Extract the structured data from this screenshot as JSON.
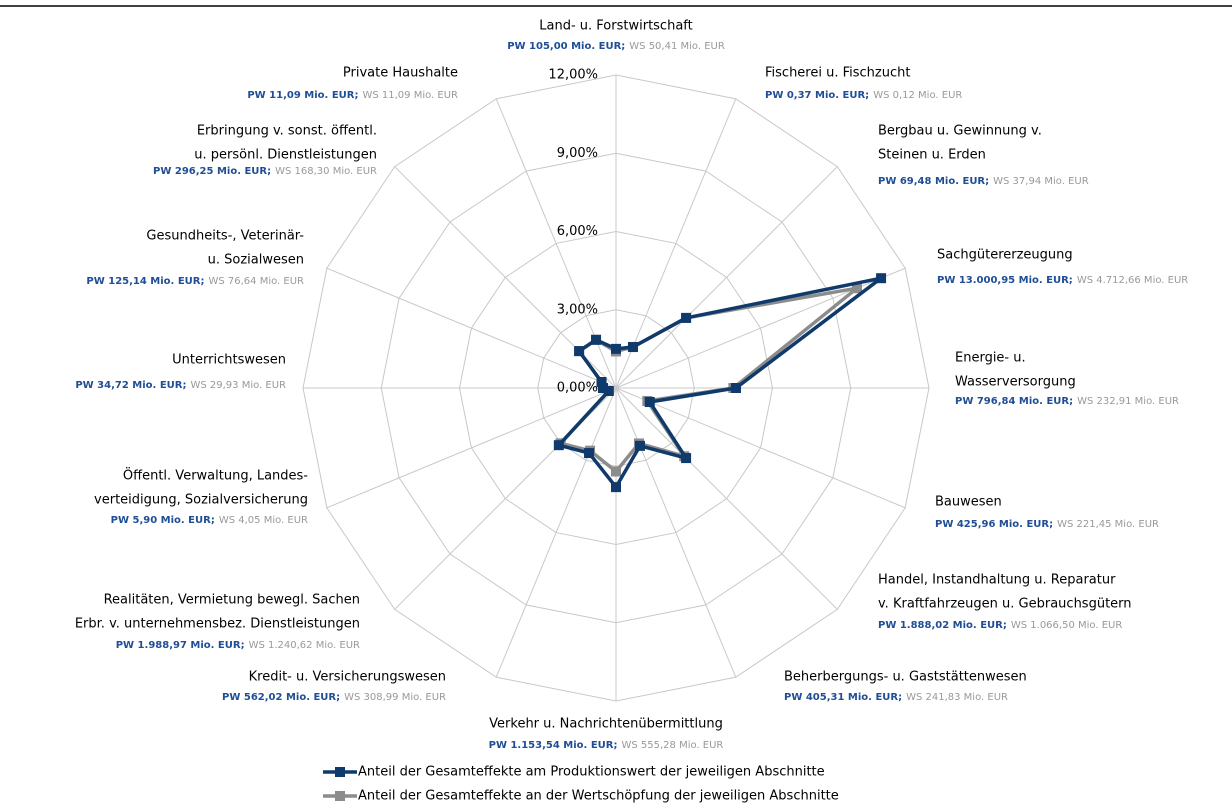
{
  "chart_data": {
    "type": "radar",
    "categories": [
      [
        "Land- u. Forstwirtschaft"
      ],
      [
        "Fischerei u. Fischzucht"
      ],
      [
        "Bergbau u. Gewinnung v.",
        "Steinen u. Erden"
      ],
      [
        "Sachgütererzeugung"
      ],
      [
        "Energie- u.",
        "Wasserversorgung"
      ],
      [
        "Bauwesen"
      ],
      [
        "Handel, Instandhaltung u. Reparatur",
        "v. Kraftfahrzeugen u. Gebrauchsgütern"
      ],
      [
        "Beherbergungs- u. Gaststättenwesen"
      ],
      [
        "Verkehr u. Nachrichtenübermittlung"
      ],
      [
        "Kredit- u. Versicherungswesen"
      ],
      [
        "Realitäten, Vermietung bewegl. Sachen",
        "Erbr. v. unternehmensbez. Dienstleistungen"
      ],
      [
        "Öffentl. Verwaltung, Landes-",
        "verteidigung, Sozialversicherung"
      ],
      [
        "Unterrichtswesen"
      ],
      [
        "Gesundheits-, Veterinär-",
        "u. Sozialwesen"
      ],
      [
        "Erbringung v. sonst. öffentl.",
        "u. persönl. Dienstleistungen"
      ],
      [
        "Private Haushalte"
      ]
    ],
    "category_notes": [
      {
        "pw": "PW 105,00 Mio. EUR;",
        "ws": "WS 50,41 Mio. EUR"
      },
      {
        "pw": "PW 0,37 Mio. EUR;",
        "ws": "WS 0,12 Mio. EUR"
      },
      {
        "pw": "PW 69,48 Mio. EUR;",
        "ws": "WS 37,94 Mio. EUR"
      },
      {
        "pw": "PW 13.000,95 Mio. EUR;",
        "ws": "WS 4.712,66 Mio. EUR"
      },
      {
        "pw": "PW 796,84 Mio. EUR;",
        "ws": "WS 232,91 Mio. EUR"
      },
      {
        "pw": "PW 425,96 Mio. EUR;",
        "ws": "WS 221,45 Mio. EUR"
      },
      {
        "pw": "PW 1.888,02 Mio. EUR;",
        "ws": "WS 1.066,50 Mio. EUR"
      },
      {
        "pw": "PW 405,31 Mio. EUR;",
        "ws": "WS 241,83 Mio. EUR"
      },
      {
        "pw": "PW 1.153,54 Mio. EUR;",
        "ws": "WS 555,28 Mio. EUR"
      },
      {
        "pw": "PW 562,02 Mio. EUR;",
        "ws": "WS 308,99 Mio. EUR"
      },
      {
        "pw": "PW 1.988,97 Mio. EUR;",
        "ws": "WS 1.240,62 Mio. EUR"
      },
      {
        "pw": "PW 5,90 Mio. EUR;",
        "ws": "WS 4,05 Mio. EUR"
      },
      {
        "pw": "PW 34,72 Mio. EUR;",
        "ws": "WS 29,93 Mio. EUR"
      },
      {
        "pw": "PW 125,14 Mio. EUR;",
        "ws": "WS 76,64 Mio. EUR"
      },
      {
        "pw": "PW 296,25 Mio. EUR;",
        "ws": "WS 168,30 Mio. EUR"
      },
      {
        "pw": "PW 11,09 Mio. EUR;",
        "ws": "WS 11,09 Mio. EUR"
      }
    ],
    "series": [
      {
        "name": "Anteil der Gesamteffekte am Produktionswert der jeweiligen Abschnitte",
        "color": "#0f3a6b",
        "values": [
          1.5,
          1.7,
          3.8,
          11.0,
          4.6,
          1.4,
          3.8,
          2.4,
          3.8,
          2.7,
          3.1,
          0.3,
          0.5,
          0.6,
          2.0,
          2.0
        ]
      },
      {
        "name": "Anteil der Gesamteffekte an der Wertschöpfung der jeweiligen Abschnitte",
        "color": "#8c8c8c",
        "values": [
          1.4,
          1.7,
          3.8,
          10.0,
          4.5,
          1.3,
          3.7,
          2.3,
          3.2,
          2.6,
          3.0,
          0.3,
          0.5,
          0.6,
          2.0,
          2.0
        ]
      }
    ],
    "rlim": [
      0,
      12
    ],
    "rticks": [
      {
        "value": 0,
        "label": "0,00%"
      },
      {
        "value": 3,
        "label": "3,00%"
      },
      {
        "value": 6,
        "label": "6,00%"
      },
      {
        "value": 9,
        "label": "9,00%"
      },
      {
        "value": 12,
        "label": "12,00%"
      }
    ]
  }
}
